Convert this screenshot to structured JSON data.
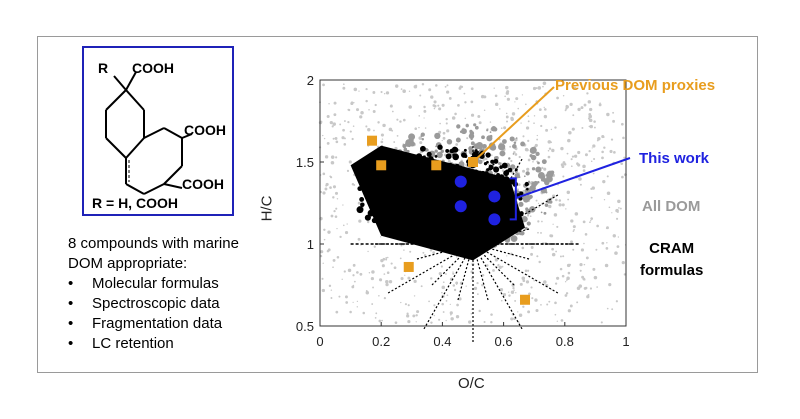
{
  "structure": {
    "substituent_label": "R",
    "cooh_top": "COOH",
    "cooh_mid": "COOH",
    "cooh_bottom": "COOH",
    "r_definition": "R = H, COOH"
  },
  "left_text": {
    "line1": "8 compounds with marine",
    "line2": "DOM appropriate:",
    "bullets": [
      "Molecular formulas",
      "Spectroscopic data",
      "Fragmentation data",
      "LC retention"
    ]
  },
  "annotations": {
    "previous": "Previous DOM proxies",
    "this_work": "This work",
    "all_dom": "All DOM",
    "cram_1": "CRAM",
    "cram_2": "formulas"
  },
  "colors": {
    "orange": "#e89d1e",
    "blue": "#1f22e0",
    "gray": "#9a9a9a",
    "black": "#000000",
    "frame_blue": "#1f22b8"
  },
  "chart_data": {
    "type": "scatter",
    "xlabel": "O/C",
    "ylabel": "H/C",
    "xlim": [
      0,
      1
    ],
    "ylim": [
      0.5,
      2
    ],
    "xticks": [
      "0",
      "0.2",
      "0.4",
      "0.6",
      "0.8",
      "1"
    ],
    "yticks": [
      "0.5",
      "1",
      "1.5",
      "2"
    ],
    "series": [
      {
        "name": "Previous DOM proxies",
        "marker": "square",
        "points": [
          [
            0.17,
            1.63
          ],
          [
            0.2,
            1.48
          ],
          [
            0.38,
            1.48
          ],
          [
            0.5,
            1.5
          ],
          [
            0.29,
            0.86
          ],
          [
            0.67,
            0.66
          ]
        ]
      },
      {
        "name": "This work",
        "marker": "circle",
        "points": [
          [
            0.46,
            1.38
          ],
          [
            0.46,
            1.23
          ],
          [
            0.57,
            1.29
          ],
          [
            0.57,
            1.15
          ]
        ]
      }
    ],
    "dom_cloud": {
      "all_dom_region": {
        "x": [
          0.1,
          0.8
        ],
        "y": [
          0.7,
          1.8
        ]
      },
      "cram_region_corners": [
        [
          0.1,
          1.48
        ],
        [
          0.2,
          1.6
        ],
        [
          0.62,
          1.4
        ],
        [
          0.67,
          1.1
        ],
        [
          0.5,
          0.9
        ],
        [
          0.2,
          1.05
        ]
      ]
    }
  }
}
